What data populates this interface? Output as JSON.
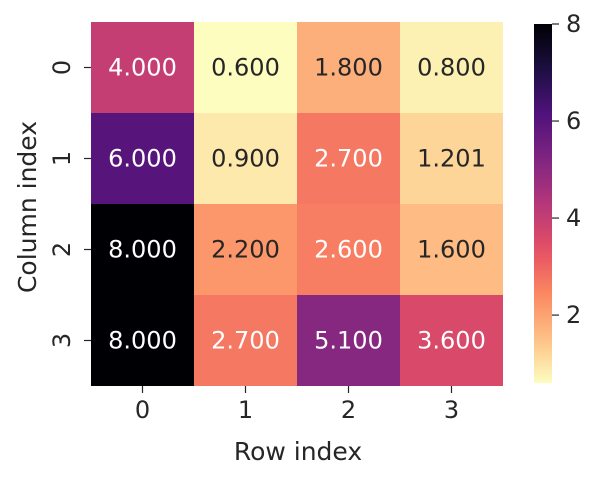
{
  "chart_data": {
    "type": "heatmap",
    "title": "",
    "xlabel": "Row index",
    "ylabel": "Column index",
    "x_categories": [
      "0",
      "1",
      "2",
      "3"
    ],
    "y_categories": [
      "0",
      "1",
      "2",
      "3"
    ],
    "values": [
      [
        4.0,
        0.6,
        1.8,
        0.8
      ],
      [
        6.0,
        0.9,
        2.7,
        1.201
      ],
      [
        8.0,
        2.2,
        2.6,
        1.6
      ],
      [
        8.0,
        2.7,
        5.1,
        3.6
      ]
    ],
    "labels": [
      [
        "4.000",
        "0.600",
        "1.800",
        "0.800"
      ],
      [
        "6.000",
        "0.900",
        "2.700",
        "1.201"
      ],
      [
        "8.000",
        "2.200",
        "2.600",
        "1.600"
      ],
      [
        "8.000",
        "2.700",
        "5.100",
        "3.600"
      ]
    ],
    "colormap": "magma_r",
    "value_range": [
      0.6,
      8.0
    ],
    "colorbar_ticks": [
      2,
      4,
      6,
      8
    ],
    "colorbar_tick_labels": [
      "2",
      "4",
      "6",
      "8"
    ]
  }
}
